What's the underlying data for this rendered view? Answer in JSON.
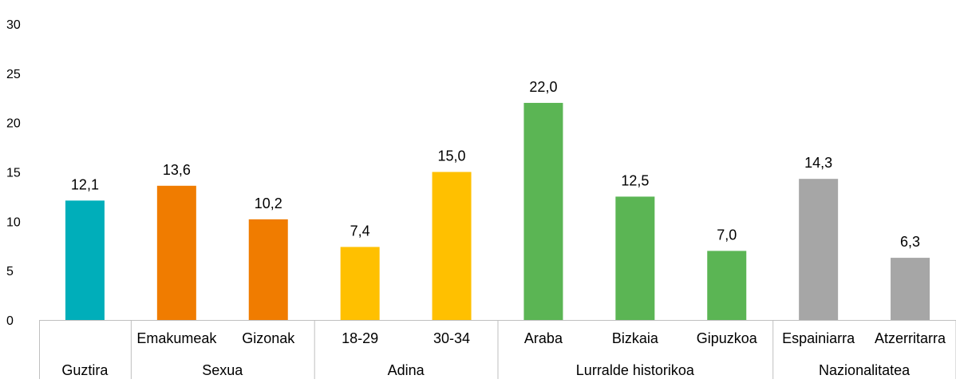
{
  "chart_data": {
    "type": "bar",
    "title": "",
    "xlabel": "",
    "ylabel": "",
    "ylim": [
      0,
      30
    ],
    "yticks": [
      "0",
      "5",
      "10",
      "15",
      "20",
      "25",
      "30"
    ],
    "grid": false,
    "legend": "none",
    "categories": [
      "Guztira",
      "Emakumeak",
      "Gizonak",
      "18-29",
      "30-34",
      "Araba",
      "Bizkaia",
      "Gipuzkoa",
      "Espainiarra",
      "Atzerritarra"
    ],
    "values": [
      12.1,
      13.6,
      10.2,
      7.4,
      15.0,
      22.0,
      12.5,
      7.0,
      14.3,
      6.3
    ],
    "data_labels": [
      "12,1",
      "13,6",
      "10,2",
      "7,4",
      "15,0",
      "22,0",
      "12,5",
      "7,0",
      "14,3",
      "6,3"
    ],
    "groups": [
      {
        "name": "Guztira",
        "size": 1,
        "color": "#00AEBA",
        "show_category_labels": false
      },
      {
        "name": "Sexua",
        "size": 2,
        "color": "#F07C00",
        "show_category_labels": true
      },
      {
        "name": "Adina",
        "size": 2,
        "color": "#FFC000",
        "show_category_labels": true
      },
      {
        "name": "Lurralde historikoa",
        "size": 3,
        "color": "#5BB554",
        "show_category_labels": true
      },
      {
        "name": "Nazionalitatea",
        "size": 2,
        "color": "#A6A6A6",
        "show_category_labels": true
      }
    ]
  }
}
